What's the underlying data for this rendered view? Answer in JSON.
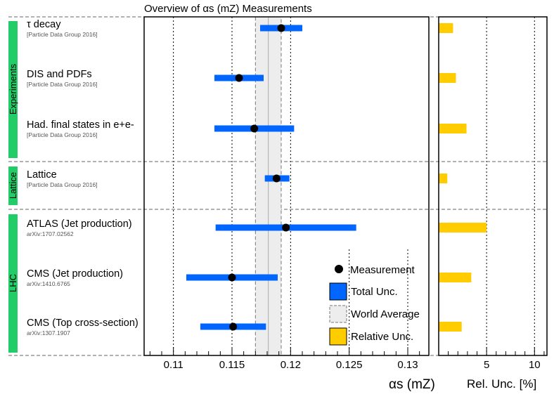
{
  "chart_data": {
    "type": "forest",
    "title": "Overview of αs (mZ) Measurements",
    "xlabel": "αs (mZ)",
    "xlim": [
      0.1075,
      0.1318
    ],
    "xticks": [
      "0.11",
      "0.115",
      "0.12",
      "0.125",
      "0.13"
    ],
    "xtick_values": [
      0.11,
      0.115,
      0.12,
      0.125,
      0.13
    ],
    "world_average": {
      "value": 0.1181,
      "low": 0.117,
      "high": 0.1192
    },
    "groups": [
      {
        "name": "Experiments",
        "count": 3
      },
      {
        "name": "Lattice",
        "count": 1
      },
      {
        "name": "LHC",
        "count": 3
      }
    ],
    "measurements": [
      {
        "label": "τ decay",
        "sublabel": "[Particle Data Group 2016]",
        "value": 0.1192,
        "low": 0.1174,
        "high": 0.121,
        "rel_unc": 1.5
      },
      {
        "label": "DIS and PDFs",
        "sublabel": "[Particle Data Group 2016]",
        "value": 0.1156,
        "low": 0.1135,
        "high": 0.1177,
        "rel_unc": 1.8
      },
      {
        "label": "Had. final states in e+e-",
        "sublabel": "[Particle Data Group 2016]",
        "value": 0.1169,
        "low": 0.1135,
        "high": 0.1203,
        "rel_unc": 2.9
      },
      {
        "label": "Lattice",
        "sublabel": "[Particle Data Group 2016]",
        "value": 0.1188,
        "low": 0.1178,
        "high": 0.1199,
        "rel_unc": 0.9
      },
      {
        "label": "ATLAS (Jet production)",
        "sublabel": "arXiv:1707.02562",
        "value": 0.1196,
        "low": 0.1136,
        "high": 0.1256,
        "rel_unc": 5.0
      },
      {
        "label": "CMS (Jet production)",
        "sublabel": "arXiv:1410.6765",
        "value": 0.115,
        "low": 0.1111,
        "high": 0.1189,
        "rel_unc": 3.4
      },
      {
        "label": "CMS (Top cross-section)",
        "sublabel": "arXiv:1307.1907",
        "value": 0.1151,
        "low": 0.1123,
        "high": 0.1179,
        "rel_unc": 2.4
      }
    ],
    "rel_axis": {
      "label": "Rel. Unc. [%]",
      "xlim": [
        0,
        11.3
      ],
      "ticks": [
        "5",
        "10"
      ],
      "tick_values": [
        5,
        10
      ]
    },
    "legend": {
      "measurement": "Measurement",
      "total": "Total Unc.",
      "world": "World Average",
      "relative": "Relative Unc."
    },
    "colors": {
      "bar": "#0066ff",
      "rel": "#ffcc00",
      "group": "#22cc66",
      "band": "#ededed"
    }
  }
}
